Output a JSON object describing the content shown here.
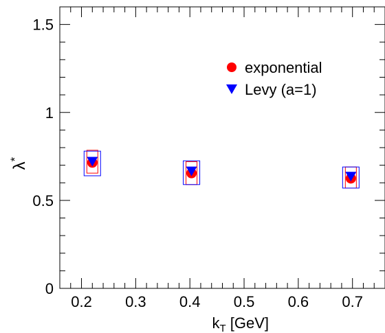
{
  "chart_data": {
    "type": "scatter",
    "xlabel_main": "k",
    "xlabel_sub": "T",
    "xlabel_rest": " [GeV]",
    "ylabel_main": "λ",
    "ylabel_sup": "*",
    "xlim": [
      0.16,
      0.76
    ],
    "ylim": [
      0,
      1.6
    ],
    "x_ticks": [
      0.2,
      0.3,
      0.4,
      0.5,
      0.6,
      0.7
    ],
    "x_tick_labels": [
      "0.2",
      "0.3",
      "0.4",
      "0.5",
      "0.6",
      "0.7"
    ],
    "y_ticks": [
      0,
      0.5,
      1,
      1.5
    ],
    "y_tick_labels": [
      "0",
      "0.5",
      "1",
      "1.5"
    ],
    "grid": false,
    "legend_position": "top-right",
    "series": [
      {
        "name": "exponential",
        "marker": "circle",
        "color": "#ff0000",
        "x": [
          0.22,
          0.403,
          0.697
        ],
        "y": [
          0.715,
          0.655,
          0.625
        ],
        "sys_low": [
          0.655,
          0.59,
          0.57
        ],
        "sys_high": [
          0.785,
          0.72,
          0.69
        ]
      },
      {
        "name": "Levy (a=1)",
        "marker": "triangle-down",
        "color": "#0000ff",
        "x": [
          0.22,
          0.403,
          0.697
        ],
        "y": [
          0.72,
          0.665,
          0.635
        ],
        "sys_low": [
          0.64,
          0.59,
          0.57
        ],
        "sys_high": [
          0.78,
          0.725,
          0.69
        ]
      }
    ]
  }
}
